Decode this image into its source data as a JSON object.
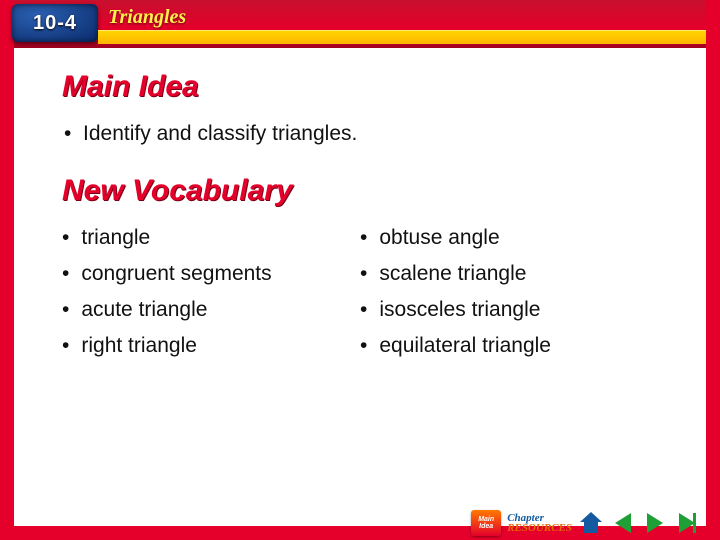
{
  "chapter": {
    "number": "10-4",
    "title": "Triangles"
  },
  "sections": {
    "main_idea_heading": "Main Idea",
    "main_idea_text": "Identify and classify triangles.",
    "vocab_heading": "New Vocabulary",
    "vocab_col1": [
      "triangle",
      "congruent segments",
      "acute triangle",
      "right triangle"
    ],
    "vocab_col2": [
      "obtuse angle",
      "scalene triangle",
      "isosceles triangle",
      "equilateral triangle"
    ]
  },
  "nav": {
    "mainidea_btn_line1": "Main",
    "mainidea_btn_line2": "Idea",
    "chapter_btn_line1": "Chapter",
    "chapter_btn_line2": "RESOURCES"
  },
  "colors": {
    "brand_red": "#e4002b",
    "brand_yellow": "#ffd400",
    "brand_blue": "#145aa0",
    "nav_green": "#1ea037",
    "text": "#111111",
    "bg": "#ffffff"
  },
  "typography": {
    "heading_fontsize": 30,
    "body_fontsize": 21,
    "chapter_num_fontsize": 20,
    "header_title_fontsize": 20
  }
}
